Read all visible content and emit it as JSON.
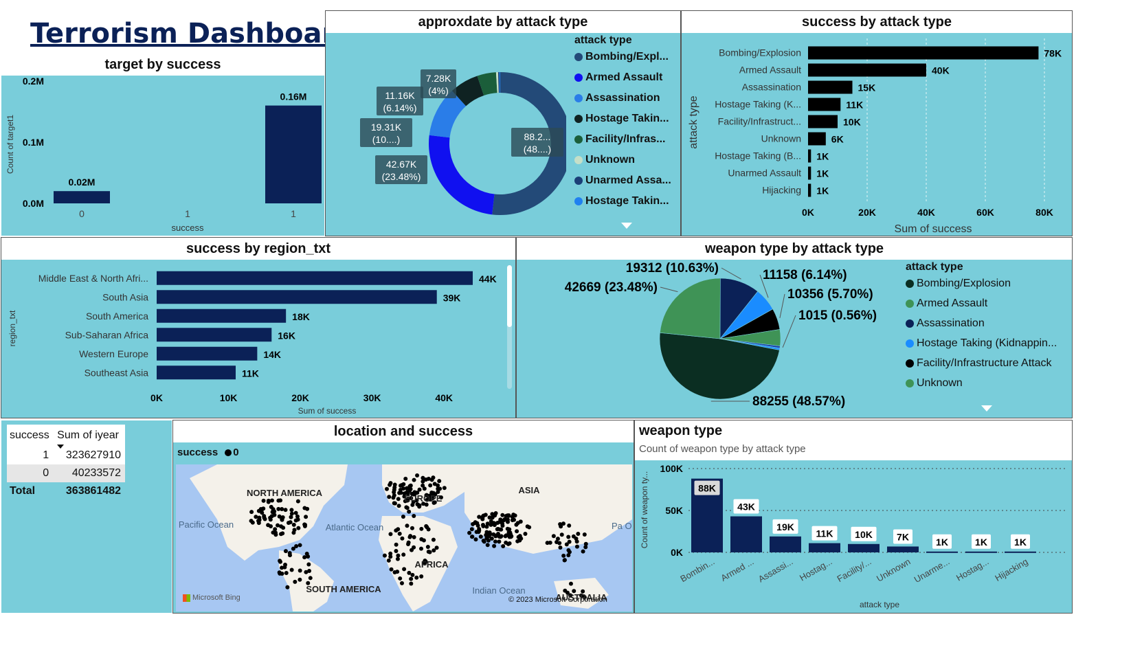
{
  "dashboard": {
    "title": "Terrorism Dashboard"
  },
  "chart_data": [
    {
      "id": "target_by_success",
      "type": "bar",
      "title": "target by success",
      "xlabel": "success",
      "ylabel": "Count of target1",
      "categories": [
        "0",
        "1",
        "1"
      ],
      "values": [
        0.02,
        0,
        0.16
      ],
      "data_labels": [
        "0.02M",
        "",
        "0.16M"
      ],
      "yticks": [
        "0.0M",
        "0.1M",
        "0.2M"
      ],
      "ylim": [
        0,
        0.2
      ],
      "color": "#0b2157"
    },
    {
      "id": "approxdate_by_attack_type",
      "type": "pie",
      "donut": true,
      "title": "approxdate by attack type",
      "legend_title": "attack type",
      "slices": [
        {
          "name": "Bombing/Expl...",
          "value": 88.2,
          "label": "88.2...",
          "pct": "(48....)",
          "color": "#234a78"
        },
        {
          "name": "Armed Assault",
          "value": 42.67,
          "label": "42.67K",
          "pct": "(23.48%)",
          "color": "#1010f0"
        },
        {
          "name": "Assassination",
          "value": 19.31,
          "label": "19.31K",
          "pct": "(10....)",
          "color": "#2a7de8"
        },
        {
          "name": "Hostage Takin...",
          "value": 11.16,
          "label": "11.16K",
          "pct": "(6.14%)",
          "color": "#0f2222"
        },
        {
          "name": "Facility/Infras...",
          "value": 7.28,
          "label": "7.28K",
          "pct": "(4%)",
          "color": "#1b5e3a"
        },
        {
          "name": "Unknown",
          "value": 0.8,
          "label": "",
          "pct": "",
          "color": "#c5dfc8"
        },
        {
          "name": "Unarmed Assa...",
          "value": 0.5,
          "label": "",
          "pct": "",
          "color": "#1b3f78"
        },
        {
          "name": "Hostage Takin...",
          "value": 0.3,
          "label": "",
          "pct": "",
          "color": "#2080f0"
        }
      ]
    },
    {
      "id": "success_by_attack_type",
      "type": "bar",
      "orientation": "horizontal",
      "title": "success by attack type",
      "xlabel": "Sum of success",
      "ylabel": "attack type",
      "categories": [
        "Bombing/Explosion",
        "Armed Assault",
        "Assassination",
        "Hostage Taking (K...",
        "Facility/Infrastruct...",
        "Unknown",
        "Hostage Taking (B...",
        "Unarmed Assault",
        "Hijacking"
      ],
      "values": [
        78,
        40,
        15,
        11,
        10,
        6,
        1,
        1,
        1
      ],
      "data_labels": [
        "78K",
        "40K",
        "15K",
        "11K",
        "10K",
        "6K",
        "1K",
        "1K",
        "1K"
      ],
      "xticks": [
        "0K",
        "20K",
        "40K",
        "60K",
        "80K"
      ],
      "xlim": [
        0,
        80
      ],
      "color": "#000000"
    },
    {
      "id": "success_by_region",
      "type": "bar",
      "orientation": "horizontal",
      "title": "success by region_txt",
      "xlabel": "Sum of success",
      "ylabel": "region_txt",
      "categories": [
        "Middle East & North Afri...",
        "South Asia",
        "South America",
        "Sub-Saharan Africa",
        "Western Europe",
        "Southeast Asia"
      ],
      "values": [
        44,
        39,
        18,
        16,
        14,
        11
      ],
      "data_labels": [
        "44K",
        "39K",
        "18K",
        "16K",
        "14K",
        "11K"
      ],
      "xticks": [
        "0K",
        "10K",
        "20K",
        "30K",
        "40K"
      ],
      "xlim": [
        0,
        44
      ],
      "color": "#0b2157"
    },
    {
      "id": "weapon_type_by_attack_type",
      "type": "pie",
      "title": "weapon type by attack type",
      "legend_title": "attack type",
      "legend": [
        "Bombing/Explosion",
        "Armed Assault",
        "Assassination",
        "Hostage Taking (Kidnappin...",
        "Facility/Infrastructure Attack",
        "Unknown"
      ],
      "legend_colors": [
        "#0b2e22",
        "#3f9356",
        "#0b2157",
        "#1a8cff",
        "#000000",
        "#3f9356"
      ],
      "slices": [
        {
          "value": 88255,
          "label": "88255 (48.57%)",
          "color": "#0b2e22"
        },
        {
          "value": 42669,
          "label": "42669 (23.48%)",
          "color": "#3f9356"
        },
        {
          "value": 19312,
          "label": "19312 (10.63%)",
          "color": "#0b2157"
        },
        {
          "value": 11158,
          "label": "11158 (6.14%)",
          "color": "#1a8cff"
        },
        {
          "value": 10356,
          "label": "10356 (5.70%)",
          "color": "#000000"
        },
        {
          "value": 8000,
          "label": "",
          "color": "#3f9356"
        },
        {
          "value": 1015,
          "label": "1015 (0.56%)",
          "color": "#1a3fa8"
        },
        {
          "value": 900,
          "label": "",
          "color": "#1a8cff"
        }
      ]
    },
    {
      "id": "weapon_type",
      "type": "bar",
      "title": "weapon type",
      "subtitle": "Count of weapon type by attack type",
      "xlabel": "attack type",
      "ylabel": "Count of weapon ty...",
      "categories": [
        "Bombin...",
        "Armed ...",
        "Assassi...",
        "Hostag...",
        "Facility/...",
        "Unknown",
        "Unarme...",
        "Hostag...",
        "Hijacking"
      ],
      "values": [
        88,
        43,
        19,
        11,
        10,
        7,
        1,
        1,
        1
      ],
      "data_labels": [
        "88K",
        "43K",
        "19K",
        "11K",
        "10K",
        "7K",
        "1K",
        "1K",
        "1K"
      ],
      "yticks": [
        "0K",
        "50K",
        "100K"
      ],
      "ylim": [
        0,
        100
      ],
      "color": "#0b2157"
    }
  ],
  "matrix": {
    "col1": "success",
    "col2": "Sum of iyear",
    "rows": [
      {
        "success": "1",
        "value": "323627910"
      },
      {
        "success": "0",
        "value": "40233572"
      }
    ],
    "total_label": "Total",
    "total_value": "363861482"
  },
  "map": {
    "title": "location and success",
    "legend_label": "success",
    "legend_value": "0",
    "labels": {
      "na": "NORTH AMERICA",
      "asia": "ASIA",
      "europe": "EUROPE",
      "africa": "AFRICA",
      "sa": "SOUTH AMERICA",
      "australia": "AUSTRALIA",
      "pacific": "Pacific Ocean",
      "atlantic": "Atlantic Ocean",
      "indian": "Indian Ocean",
      "pac2": "Pa Oc"
    },
    "attribution_bing": "Microsoft Bing",
    "copyright": "© 2023 Microsoft Corporation"
  }
}
